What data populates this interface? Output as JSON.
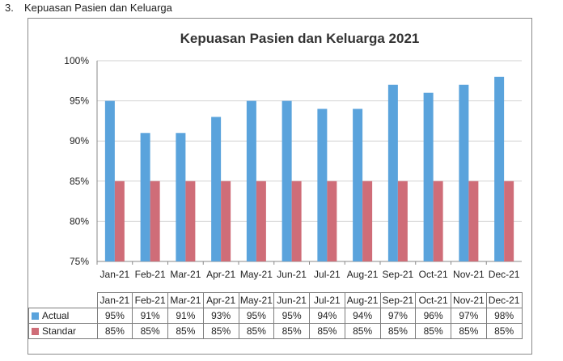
{
  "heading": {
    "number": "3.",
    "text": "Kepuasan Pasien dan Keluarga"
  },
  "colors": {
    "actual": "#5aa3dc",
    "standar": "#cf6d78",
    "grid": "#d2d2d2"
  },
  "chart_data": {
    "type": "bar",
    "title": "Kepuasan Pasien dan Keluarga 2021",
    "xlabel": "",
    "ylabel": "",
    "ylim": [
      75,
      100
    ],
    "yticks": [
      75,
      80,
      85,
      90,
      95,
      100
    ],
    "ytick_labels": [
      "75%",
      "80%",
      "85%",
      "90%",
      "95%",
      "100%"
    ],
    "grid": true,
    "legend": "table",
    "categories": [
      "Jan-21",
      "Feb-21",
      "Mar-21",
      "Apr-21",
      "May-21",
      "Jun-21",
      "Jul-21",
      "Aug-21",
      "Sep-21",
      "Oct-21",
      "Nov-21",
      "Dec-21"
    ],
    "series": [
      {
        "name": "Actual",
        "values": [
          95,
          91,
          91,
          93,
          95,
          95,
          94,
          94,
          97,
          96,
          97,
          98
        ],
        "labels": [
          "95%",
          "91%",
          "91%",
          "93%",
          "95%",
          "95%",
          "94%",
          "94%",
          "97%",
          "96%",
          "97%",
          "98%"
        ]
      },
      {
        "name": "Standar",
        "values": [
          85,
          85,
          85,
          85,
          85,
          85,
          85,
          85,
          85,
          85,
          85,
          85
        ],
        "labels": [
          "85%",
          "85%",
          "85%",
          "85%",
          "85%",
          "85%",
          "85%",
          "85%",
          "85%",
          "85%",
          "85%",
          "85%"
        ]
      }
    ]
  }
}
